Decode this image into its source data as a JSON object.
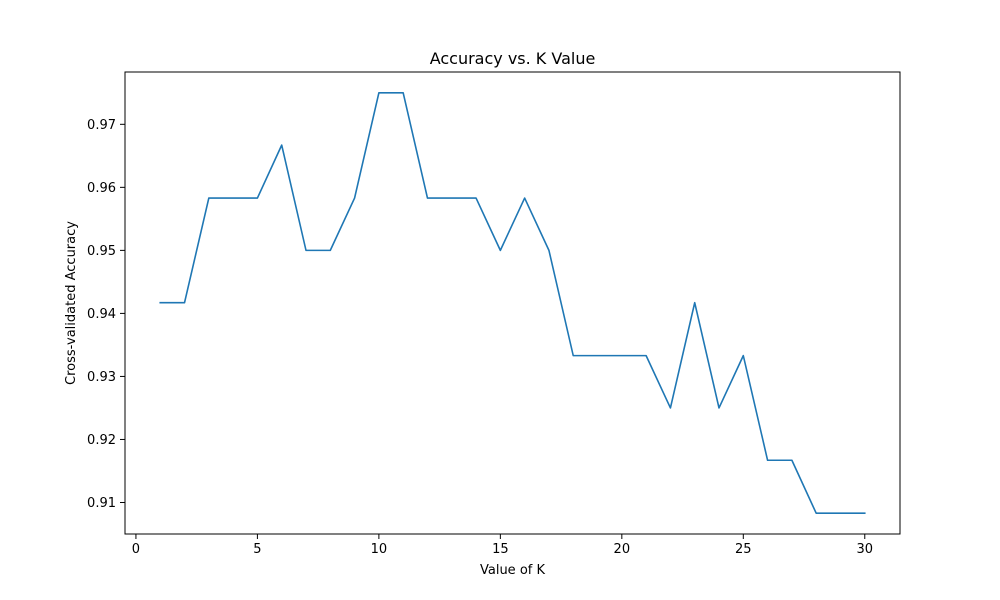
{
  "chart_data": {
    "type": "line",
    "title": "Accuracy vs. K Value",
    "xlabel": "Value of K",
    "ylabel": "Cross-validated Accuracy",
    "xlim": [
      -0.45,
      31.45
    ],
    "ylim": [
      0.905,
      0.9783
    ],
    "x_ticks": [
      0,
      5,
      10,
      15,
      20,
      25,
      30
    ],
    "y_ticks": [
      0.91,
      0.92,
      0.93,
      0.94,
      0.95,
      0.96,
      0.97
    ],
    "x_tick_labels": [
      "0",
      "5",
      "10",
      "15",
      "20",
      "25",
      "30"
    ],
    "y_tick_labels": [
      "0.91",
      "0.92",
      "0.93",
      "0.94",
      "0.95",
      "0.96",
      "0.97"
    ],
    "grid": false,
    "series": [
      {
        "color": "#1f77b4",
        "x": [
          1,
          2,
          3,
          4,
          5,
          6,
          7,
          8,
          9,
          10,
          11,
          12,
          13,
          14,
          15,
          16,
          17,
          18,
          19,
          20,
          21,
          22,
          23,
          24,
          25,
          26,
          27,
          28,
          29,
          30
        ],
        "y": [
          0.9417,
          0.9417,
          0.9583,
          0.9583,
          0.9583,
          0.9667,
          0.95,
          0.95,
          0.9583,
          0.975,
          0.975,
          0.9583,
          0.9583,
          0.9583,
          0.95,
          0.9583,
          0.95,
          0.9333,
          0.9333,
          0.9333,
          0.9333,
          0.925,
          0.9417,
          0.925,
          0.9333,
          0.9167,
          0.9167,
          0.9083,
          0.9083,
          0.9083
        ]
      }
    ]
  }
}
